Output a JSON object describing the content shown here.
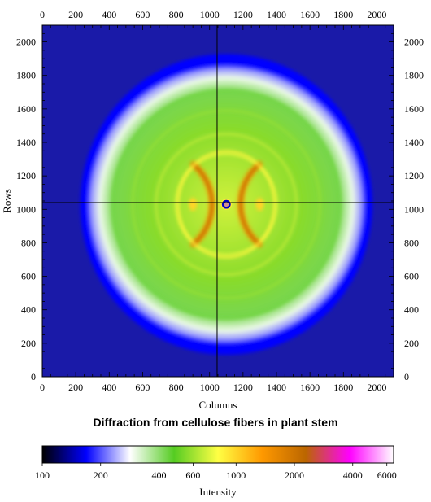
{
  "chart_data": {
    "type": "heatmap",
    "title": "Diffraction from cellulose fibers in plant stem",
    "xlabel": "Columns",
    "ylabel": "Rows",
    "xlim": [
      0,
      2100
    ],
    "ylim": [
      0,
      2100
    ],
    "x_ticks": [
      0,
      200,
      400,
      600,
      800,
      1000,
      1200,
      1400,
      1600,
      1800,
      2000
    ],
    "y_ticks": [
      0,
      200,
      400,
      600,
      800,
      1000,
      1200,
      1400,
      1600,
      1800,
      2000
    ],
    "crosshair": {
      "column": 1045,
      "row": 1040
    },
    "beam_center": {
      "column": 1100,
      "row": 1030
    },
    "colorbar": {
      "label": "Intensity",
      "scale": "log",
      "range": [
        100,
        6500
      ],
      "tick_values": [
        100,
        200,
        400,
        600,
        1000,
        2000,
        4000,
        6000
      ],
      "tick_labels": [
        "100",
        "200",
        "400",
        "600",
        "1000",
        "2000",
        "4000",
        "6000"
      ],
      "colors": [
        "#000000",
        "#0000ff",
        "#ffffff",
        "#55cc22",
        "#ffff44",
        "#ff9900",
        "#bb6600",
        "#ff00ff",
        "#ffffff"
      ]
    },
    "features": [
      {
        "kind": "outer-halo",
        "radius": 840,
        "intensity": 300
      },
      {
        "kind": "ring",
        "radius": 680,
        "intensity": 500
      },
      {
        "kind": "ring",
        "radius": 560,
        "intensity": 600
      },
      {
        "kind": "ring",
        "radius": 420,
        "intensity": 700
      },
      {
        "kind": "ring",
        "radius": 300,
        "intensity": 800
      },
      {
        "kind": "equatorial-arc-pair",
        "radius": 310,
        "intensity": 1500
      },
      {
        "kind": "equatorial-spot-pair",
        "radius": 200,
        "intensity": 1000
      },
      {
        "kind": "beamstop",
        "radius": 30,
        "intensity": 150
      }
    ]
  }
}
